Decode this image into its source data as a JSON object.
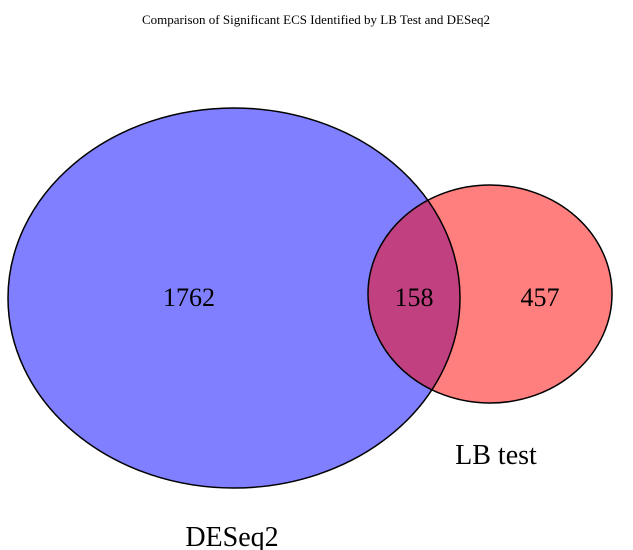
{
  "title": "Comparison of Significant ECS Identified by LB Test and DESeq2",
  "sets": [
    {
      "name": "DESeq2",
      "color": "#7f7fff",
      "only_count": "1762"
    },
    {
      "name": "LB test",
      "color": "#ff7f7f",
      "only_count": "457"
    }
  ],
  "intersection": {
    "count": "158",
    "color": "#c04080"
  },
  "outline_color": "#000000",
  "background_color": "#ffffff"
}
